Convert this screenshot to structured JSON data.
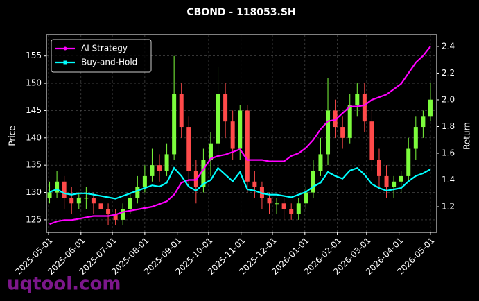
{
  "chart_data": {
    "type": "candlestick",
    "title": "CBOND - 118053.SH",
    "ylabel": "Price",
    "y2label": "Return",
    "watermark": "uqtool.com",
    "grid": true,
    "legend": "upper left",
    "up_color": "#7cfc3c",
    "down_color": "#ff4a4a",
    "x": [
      "2025-05-02",
      "2025-05-09",
      "2025-05-16",
      "2025-05-23",
      "2025-05-30",
      "2025-06-06",
      "2025-06-13",
      "2025-06-20",
      "2025-06-27",
      "2025-07-04",
      "2025-07-11",
      "2025-07-18",
      "2025-07-25",
      "2025-08-01",
      "2025-08-08",
      "2025-08-15",
      "2025-08-22",
      "2025-08-29",
      "2025-09-05",
      "2025-09-12",
      "2025-09-19",
      "2025-09-26",
      "2025-10-03",
      "2025-10-10",
      "2025-10-17",
      "2025-10-24",
      "2025-10-31",
      "2025-11-07",
      "2025-11-14",
      "2025-11-21",
      "2025-11-28",
      "2025-12-05",
      "2025-12-12",
      "2025-12-19",
      "2025-12-26",
      "2026-01-02",
      "2026-01-09",
      "2026-01-16",
      "2026-01-23",
      "2026-01-30",
      "2026-02-06",
      "2026-02-13",
      "2026-02-20",
      "2026-02-27",
      "2026-03-06",
      "2026-03-13",
      "2026-03-20",
      "2026-03-27",
      "2026-04-03",
      "2026-04-10",
      "2026-04-17",
      "2026-04-24",
      "2026-05-01"
    ],
    "open": [
      129,
      130,
      132,
      129,
      128,
      129,
      129,
      128,
      127,
      126,
      125,
      127,
      129,
      131,
      133,
      135,
      134,
      137,
      148,
      142,
      134,
      131,
      136,
      139,
      148,
      143,
      138,
      145,
      132,
      131,
      129,
      128,
      128,
      127,
      126,
      128,
      130,
      134,
      137,
      145,
      142,
      140,
      146,
      148,
      143,
      136,
      133,
      131,
      132,
      133,
      138,
      142,
      144
    ],
    "high": [
      132,
      134,
      133,
      131,
      130,
      131,
      130,
      129,
      128,
      127,
      128,
      130,
      133,
      135,
      138,
      137,
      139,
      155,
      150,
      144,
      136,
      138,
      141,
      153,
      150,
      145,
      146,
      146,
      134,
      132,
      130,
      129,
      129,
      128,
      129,
      131,
      136,
      140,
      151,
      147,
      144,
      148,
      150,
      150,
      145,
      138,
      135,
      133,
      134,
      140,
      144,
      145,
      150
    ],
    "low": [
      128,
      129,
      127,
      126,
      127,
      127,
      126,
      125,
      124,
      124,
      124,
      126,
      128,
      130,
      132,
      132,
      133,
      136,
      140,
      131,
      128,
      130,
      133,
      137,
      140,
      136,
      136,
      130,
      129,
      127,
      126,
      126,
      125,
      125,
      125,
      127,
      129,
      133,
      135,
      140,
      138,
      139,
      144,
      141,
      134,
      131,
      129,
      129,
      130,
      132,
      136,
      140,
      143
    ],
    "close": [
      130,
      132,
      129,
      128,
      129,
      129,
      128,
      127,
      126,
      125,
      127,
      129,
      131,
      133,
      135,
      134,
      137,
      148,
      142,
      134,
      131,
      136,
      139,
      148,
      143,
      138,
      145,
      132,
      131,
      129,
      128,
      128,
      127,
      126,
      128,
      130,
      134,
      137,
      145,
      142,
      140,
      146,
      148,
      143,
      136,
      133,
      131,
      132,
      133,
      138,
      142,
      144,
      147
    ],
    "series": [
      {
        "name": "AI Strategy",
        "color": "#ff00ff",
        "axis": "y2",
        "values": [
          1.07,
          1.09,
          1.1,
          1.1,
          1.11,
          1.12,
          1.13,
          1.13,
          1.13,
          1.14,
          1.16,
          1.17,
          1.18,
          1.19,
          1.2,
          1.22,
          1.24,
          1.29,
          1.38,
          1.4,
          1.4,
          1.48,
          1.56,
          1.58,
          1.59,
          1.61,
          1.63,
          1.55,
          1.55,
          1.55,
          1.54,
          1.54,
          1.54,
          1.58,
          1.6,
          1.64,
          1.7,
          1.78,
          1.84,
          1.85,
          1.9,
          1.95,
          1.95,
          1.96,
          2.0,
          2.02,
          2.04,
          2.08,
          2.12,
          2.2,
          2.28,
          2.33,
          2.4
        ]
      },
      {
        "name": "Buy-and-Hold",
        "color": "#00ffff",
        "axis": "y2",
        "values": [
          1.31,
          1.33,
          1.3,
          1.29,
          1.3,
          1.3,
          1.29,
          1.28,
          1.27,
          1.26,
          1.28,
          1.3,
          1.32,
          1.34,
          1.36,
          1.35,
          1.38,
          1.49,
          1.43,
          1.35,
          1.32,
          1.37,
          1.4,
          1.49,
          1.44,
          1.39,
          1.46,
          1.33,
          1.32,
          1.3,
          1.29,
          1.29,
          1.28,
          1.27,
          1.29,
          1.31,
          1.35,
          1.38,
          1.46,
          1.43,
          1.41,
          1.47,
          1.49,
          1.44,
          1.37,
          1.34,
          1.32,
          1.33,
          1.34,
          1.39,
          1.43,
          1.45,
          1.48
        ]
      }
    ],
    "xlim": [
      "2025-04-29",
      "2026-05-07"
    ],
    "xticks": [
      "2025-05-01",
      "2025-06-01",
      "2025-07-01",
      "2025-08-01",
      "2025-09-01",
      "2025-10-01",
      "2025-11-01",
      "2025-12-01",
      "2026-01-01",
      "2026-02-01",
      "2026-03-01",
      "2026-04-01",
      "2026-05-01"
    ],
    "ylim": [
      122.7,
      158.9
    ],
    "yticks": [
      125,
      130,
      135,
      140,
      145,
      150,
      155
    ],
    "y2lim": [
      1.008,
      2.488
    ],
    "y2ticks": [
      1.2,
      1.4,
      1.6,
      1.8,
      {
        "value": 2,
        "label": "2.0"
      },
      2.2,
      2.4
    ]
  }
}
